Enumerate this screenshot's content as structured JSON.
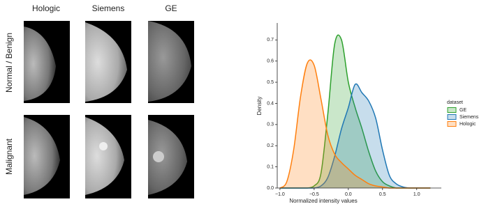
{
  "image_grid": {
    "columns": [
      "Hologic",
      "Siemens",
      "GE"
    ],
    "rows": [
      "Normal / Benign",
      "Malignant"
    ]
  },
  "chart_data": {
    "type": "kde",
    "x_label": "Normalized intensity values",
    "y_label": "Density",
    "x": [
      -1.0,
      -0.9,
      -0.8,
      -0.7,
      -0.6,
      -0.5,
      -0.4,
      -0.3,
      -0.2,
      -0.1,
      0.0,
      0.1,
      0.2,
      0.3,
      0.4,
      0.5,
      0.6,
      0.7,
      0.8,
      0.9,
      1.0,
      1.1,
      1.2
    ],
    "series": [
      {
        "name": "GE",
        "color": "#2ca02c",
        "values": [
          0,
          0,
          0,
          0,
          0,
          0.01,
          0.07,
          0.35,
          0.68,
          0.7,
          0.5,
          0.38,
          0.28,
          0.17,
          0.08,
          0.03,
          0.01,
          0,
          0,
          0,
          0,
          0,
          0
        ]
      },
      {
        "name": "Siemens",
        "color": "#1f77b4",
        "values": [
          0,
          0,
          0,
          0,
          0,
          0,
          0.01,
          0.05,
          0.15,
          0.28,
          0.38,
          0.49,
          0.45,
          0.41,
          0.33,
          0.18,
          0.06,
          0.02,
          0.005,
          0,
          0,
          0,
          0
        ]
      },
      {
        "name": "Hologic",
        "color": "#ff7f0e",
        "values": [
          0,
          0.03,
          0.18,
          0.43,
          0.59,
          0.58,
          0.42,
          0.25,
          0.16,
          0.12,
          0.09,
          0.06,
          0.04,
          0.02,
          0.01,
          0.005,
          0,
          0,
          0,
          0,
          0,
          0,
          0
        ]
      }
    ],
    "legend_title": "dataset",
    "xlim": [
      -1.04,
      1.36
    ],
    "ylim": [
      0,
      0.78
    ],
    "xticks": [
      {
        "value": -1.0,
        "label": "−1.0"
      },
      {
        "value": -0.5,
        "label": "−0.5"
      },
      {
        "value": 0,
        "label": "0.0"
      },
      0.5,
      {
        "value": 1,
        "label": "1.0"
      }
    ],
    "yticks": [
      {
        "value": 0,
        "label": "0.0"
      },
      0.1,
      0.2,
      0.3,
      0.4,
      0.5,
      0.6,
      0.7
    ]
  }
}
